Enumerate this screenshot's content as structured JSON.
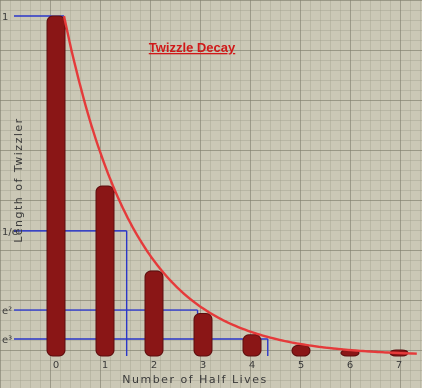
{
  "chart_data": {
    "type": "bar",
    "title": "Twizzle Decay",
    "xlabel": "Number of Half Lives",
    "ylabel": "Length of Twizzler",
    "categories": [
      "0",
      "1",
      "2",
      "3",
      "4",
      "5",
      "6",
      "7"
    ],
    "values": [
      1.0,
      0.5,
      0.25,
      0.125,
      0.0625,
      0.03125,
      0.015625,
      0.0078
    ],
    "ylim": [
      0,
      1
    ],
    "y_tick_labels": [
      {
        "value": 1.0,
        "label": "1"
      },
      {
        "value": 0.368,
        "label": "1/e"
      },
      {
        "value": 0.135,
        "label": "e²"
      },
      {
        "value": 0.05,
        "label": "e³"
      }
    ],
    "curve": {
      "type": "exponential-decay",
      "color": "#e53a3a"
    },
    "bar_color": "#8a1616",
    "guide_color": "#2a36c8",
    "grid": true,
    "legend": "none"
  }
}
